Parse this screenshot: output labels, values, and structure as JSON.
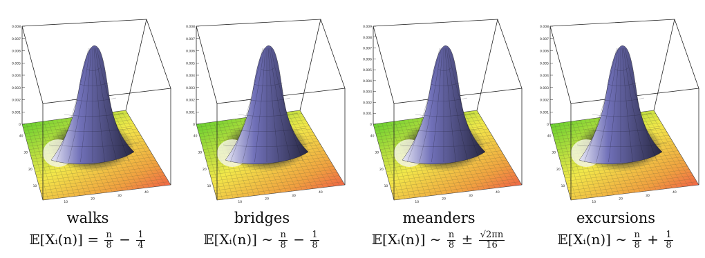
{
  "panels": [
    {
      "title": "walks",
      "formula": {
        "lhs": "𝔼[Xᵢ(n)]",
        "rel": "=",
        "num1": "n",
        "den1": "8",
        "op": "−",
        "num2": "1",
        "den2": "4"
      },
      "z_ticks": [
        "0.008",
        "0.007",
        "0.006",
        "0.005",
        "0.004",
        "0.003",
        "0.002",
        "0.001",
        "0"
      ],
      "y_ticks": [
        "40",
        "30",
        "20",
        "10"
      ],
      "x_ticks": [
        "10",
        "20",
        "30",
        "40"
      ]
    },
    {
      "title": "bridges",
      "formula": {
        "lhs": "𝔼[Xᵢ(n)]",
        "rel": "∼",
        "num1": "n",
        "den1": "8",
        "op": "−",
        "num2": "1",
        "den2": "8"
      },
      "z_ticks": [
        "0.008",
        "0.007",
        "0.006",
        "0.005",
        "0.004",
        "0.003",
        "0.002",
        "0.001",
        "0"
      ],
      "y_ticks": [
        "40",
        "30",
        "20",
        "10"
      ],
      "x_ticks": [
        "10",
        "20",
        "30",
        "40"
      ]
    },
    {
      "title": "meanders",
      "formula": {
        "lhs": "𝔼[Xᵢ(n)]",
        "rel": "∼",
        "num1": "n",
        "den1": "8",
        "op": "±",
        "num2": "√2πn",
        "den2": "16"
      },
      "z_ticks": [
        "0.009",
        "0.008",
        "0.007",
        "0.006",
        "0.005",
        "0.004",
        "0.003",
        "0.002",
        "0.001",
        "0"
      ],
      "y_ticks": [
        "40",
        "30",
        "20",
        "10"
      ],
      "x_ticks": [
        "10",
        "20",
        "30",
        "40"
      ]
    },
    {
      "title": "excursions",
      "formula": {
        "lhs": "𝔼[Xᵢ(n)]",
        "rel": "∼",
        "num1": "n",
        "den1": "8",
        "op": "+",
        "num2": "1",
        "den2": "8"
      },
      "z_ticks": [
        "0.008",
        "0.007",
        "0.006",
        "0.005",
        "0.004",
        "0.003",
        "0.002",
        "0.001",
        "0"
      ],
      "y_ticks": [
        "40",
        "30",
        "20",
        "10"
      ],
      "x_ticks": [
        "10",
        "20",
        "30",
        "40"
      ]
    }
  ],
  "colors": {
    "floor_green": "#4ccc2a",
    "floor_yellow": "#f2e84a",
    "floor_orange": "#f0a040",
    "floor_red": "#f04848",
    "peak": "#7070b8"
  }
}
